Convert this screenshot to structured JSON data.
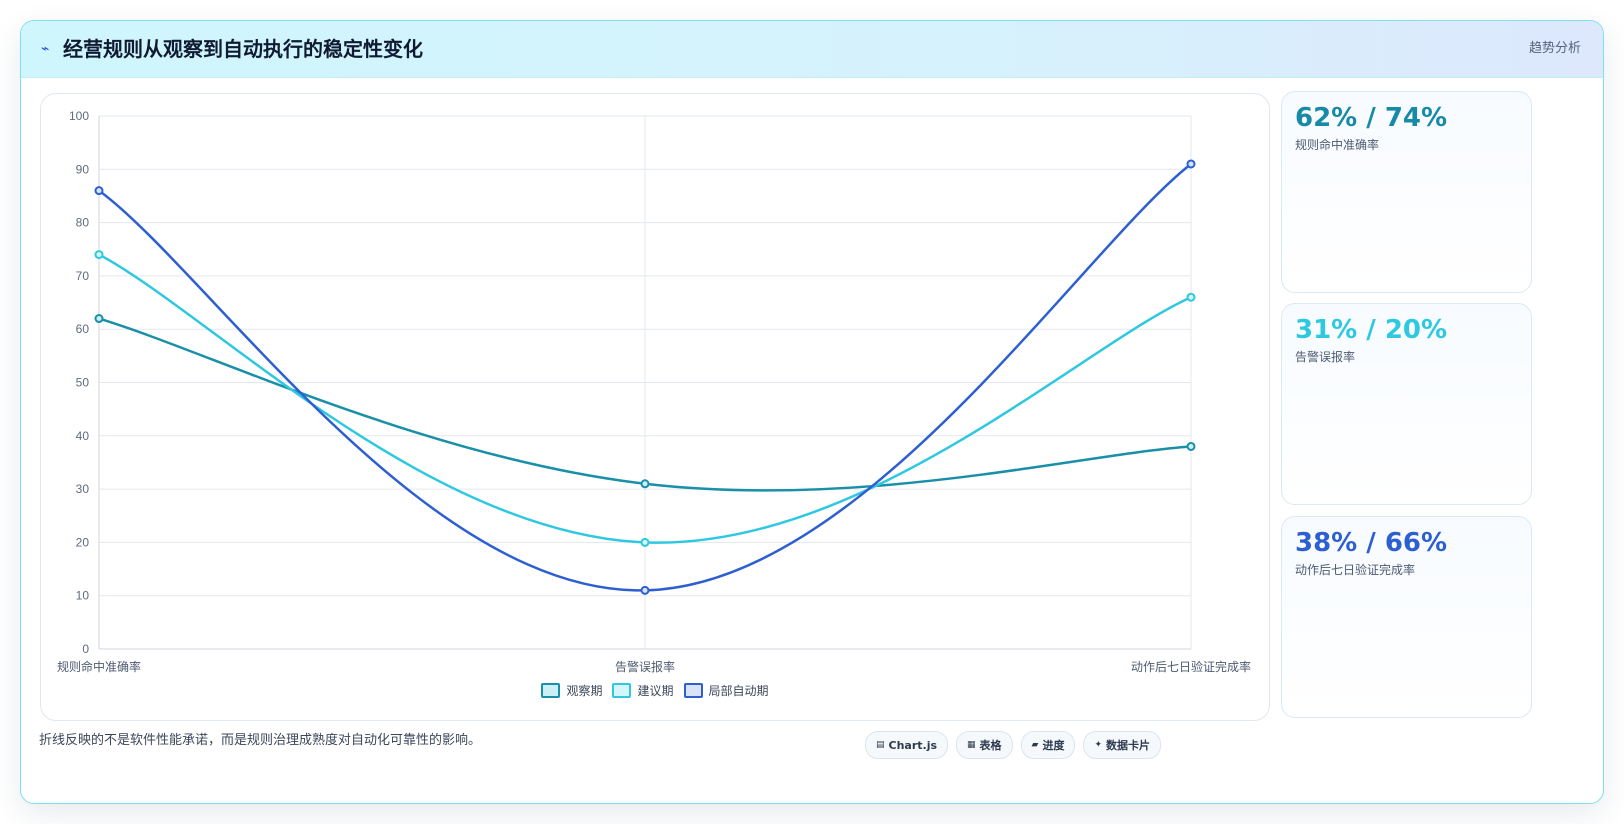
{
  "header": {
    "icon": "lightning-icon",
    "title": "经营规则从观察到自动执行的稳定性变化",
    "tag": "趋势分析"
  },
  "chart_data": {
    "type": "line",
    "categories": [
      "规则命中准确率",
      "告警误报率",
      "动作后七日验证完成率"
    ],
    "ylim": [
      0,
      100
    ],
    "yticks": [
      0,
      10,
      20,
      30,
      40,
      50,
      60,
      70,
      80,
      90,
      100
    ],
    "grid": true,
    "legend_position": "bottom",
    "series": [
      {
        "name": "观察期",
        "values": [
          62,
          31,
          38
        ],
        "color": "#1a8fa8",
        "fill": "#cdeef5"
      },
      {
        "name": "建议期",
        "values": [
          74,
          20,
          66
        ],
        "color": "#2ec8e0",
        "fill": "#d5f5fa"
      },
      {
        "name": "局部自动期",
        "values": [
          86,
          11,
          91
        ],
        "color": "#2d5fd1",
        "fill": "#d8e3fa"
      }
    ]
  },
  "stats": [
    {
      "value": "62% / 74%",
      "label": "规则命中准确率",
      "color": "#168aa6"
    },
    {
      "value": "31% / 20%",
      "label": "告警误报率",
      "color": "#2ec8e0"
    },
    {
      "value": "38% / 66%",
      "label": "动作后七日验证完成率",
      "color": "#2d5fd1"
    }
  ],
  "note": "折线反映的不是软件性能承诺，而是规则治理成熟度对自动化可靠性的影响。",
  "chips": [
    {
      "icon": "chart-icon",
      "glyph": "▤",
      "label": "Chart.js"
    },
    {
      "icon": "table-icon",
      "glyph": "▦",
      "label": "表格"
    },
    {
      "icon": "progress-icon",
      "glyph": "▰",
      "label": "进度"
    },
    {
      "icon": "card-icon",
      "glyph": "✦",
      "label": "数据卡片"
    }
  ]
}
